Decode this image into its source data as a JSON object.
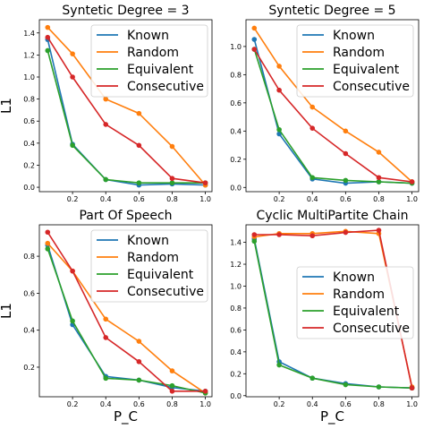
{
  "figure": {
    "colors": [
      "#1f77b4",
      "#ff7f0e",
      "#2ca02c",
      "#d62728"
    ]
  },
  "chart_data": [
    {
      "type": "line",
      "title": "Syntetic Degree = 3",
      "xlabel": "",
      "ylabel": "L1",
      "x": [
        0.05,
        0.2,
        0.4,
        0.6,
        0.8,
        1.0
      ],
      "xticks": [
        0.2,
        0.4,
        0.6,
        0.8,
        1.0
      ],
      "xtick_labels": [
        "0.2",
        "0.4",
        "0.6",
        "0.8",
        "1.0"
      ],
      "yticks": [
        0.0,
        0.2,
        0.4,
        0.6,
        0.8,
        1.0,
        1.2,
        1.4
      ],
      "ytick_labels": [
        "0.0",
        "0.2",
        "0.4",
        "0.6",
        "0.8",
        "1.0",
        "1.2",
        "1.4"
      ],
      "xlim": [
        0.0,
        1.04
      ],
      "ylim": [
        -0.04,
        1.52
      ],
      "legend": "top-right",
      "series": [
        {
          "name": "Known",
          "values": [
            1.34,
            0.39,
            0.07,
            0.02,
            0.03,
            0.02
          ]
        },
        {
          "name": "Random",
          "values": [
            1.45,
            1.21,
            0.8,
            0.67,
            0.37,
            0.02
          ]
        },
        {
          "name": "Equivalent",
          "values": [
            1.24,
            0.38,
            0.07,
            0.04,
            0.04,
            0.04
          ]
        },
        {
          "name": "Consecutive",
          "values": [
            1.36,
            1.0,
            0.57,
            0.38,
            0.08,
            0.04
          ]
        }
      ]
    },
    {
      "type": "line",
      "title": "Syntetic Degree = 5",
      "xlabel": "",
      "ylabel": "",
      "x": [
        0.05,
        0.2,
        0.4,
        0.6,
        0.8,
        1.0
      ],
      "xticks": [
        0.2,
        0.4,
        0.6,
        0.8,
        1.0
      ],
      "xtick_labels": [
        "0.2",
        "0.4",
        "0.6",
        "0.8",
        "1.0"
      ],
      "yticks": [
        0.0,
        0.2,
        0.4,
        0.6,
        0.8,
        1.0
      ],
      "ytick_labels": [
        "0.0",
        "0.2",
        "0.4",
        "0.6",
        "0.8",
        "1.0"
      ],
      "xlim": [
        0.0,
        1.04
      ],
      "ylim": [
        -0.03,
        1.19
      ],
      "legend": "top-right",
      "series": [
        {
          "name": "Known",
          "values": [
            1.05,
            0.38,
            0.06,
            0.03,
            0.04,
            0.03
          ]
        },
        {
          "name": "Random",
          "values": [
            1.13,
            0.86,
            0.57,
            0.4,
            0.25,
            0.04
          ]
        },
        {
          "name": "Equivalent",
          "values": [
            0.98,
            0.41,
            0.07,
            0.05,
            0.04,
            0.03
          ]
        },
        {
          "name": "Consecutive",
          "values": [
            0.98,
            0.69,
            0.42,
            0.24,
            0.07,
            0.04
          ]
        }
      ]
    },
    {
      "type": "line",
      "title": "Part Of Speech",
      "xlabel": "P_C",
      "ylabel": "L1",
      "x": [
        0.05,
        0.2,
        0.4,
        0.6,
        0.8,
        1.0
      ],
      "xticks": [
        0.2,
        0.4,
        0.6,
        0.8,
        1.0
      ],
      "xtick_labels": [
        "0.2",
        "0.4",
        "0.6",
        "0.8",
        "1.0"
      ],
      "yticks": [
        0.2,
        0.4,
        0.6,
        0.8
      ],
      "ytick_labels": [
        "0.2",
        "0.4",
        "0.6",
        "0.8"
      ],
      "xlim": [
        0.0,
        1.04
      ],
      "ylim": [
        0.04,
        0.97
      ],
      "legend": "top-right",
      "series": [
        {
          "name": "Known",
          "values": [
            0.86,
            0.43,
            0.15,
            0.13,
            0.09,
            0.07
          ]
        },
        {
          "name": "Random",
          "values": [
            0.87,
            0.72,
            0.46,
            0.34,
            0.18,
            0.06
          ]
        },
        {
          "name": "Equivalent",
          "values": [
            0.84,
            0.45,
            0.14,
            0.13,
            0.1,
            0.06
          ]
        },
        {
          "name": "Consecutive",
          "values": [
            0.93,
            0.72,
            0.36,
            0.23,
            0.07,
            0.07
          ]
        }
      ]
    },
    {
      "type": "line",
      "title": "Cyclic MultiPartite Chain",
      "xlabel": "P_C",
      "ylabel": "",
      "x": [
        0.05,
        0.2,
        0.4,
        0.6,
        0.8,
        1.0
      ],
      "xticks": [
        0.2,
        0.4,
        0.6,
        0.8,
        1.0
      ],
      "xtick_labels": [
        "0.2",
        "0.4",
        "0.6",
        "0.8",
        "1.0"
      ],
      "yticks": [
        0.0,
        0.2,
        0.4,
        0.6,
        0.8,
        1.0,
        1.2,
        1.4
      ],
      "ytick_labels": [
        "0.0",
        "0.2",
        "0.4",
        "0.6",
        "0.8",
        "1.0",
        "1.2",
        "1.4"
      ],
      "xlim": [
        0.0,
        1.04
      ],
      "ylim": [
        -0.01,
        1.56
      ],
      "legend": "center-right",
      "series": [
        {
          "name": "Known",
          "values": [
            1.43,
            0.31,
            0.16,
            0.11,
            0.08,
            0.07
          ]
        },
        {
          "name": "Random",
          "values": [
            1.45,
            1.48,
            1.48,
            1.5,
            1.48,
            0.08
          ]
        },
        {
          "name": "Equivalent",
          "values": [
            1.41,
            0.28,
            0.16,
            0.1,
            0.08,
            0.07
          ]
        },
        {
          "name": "Consecutive",
          "values": [
            1.47,
            1.47,
            1.46,
            1.49,
            1.51,
            0.07
          ]
        }
      ]
    }
  ]
}
